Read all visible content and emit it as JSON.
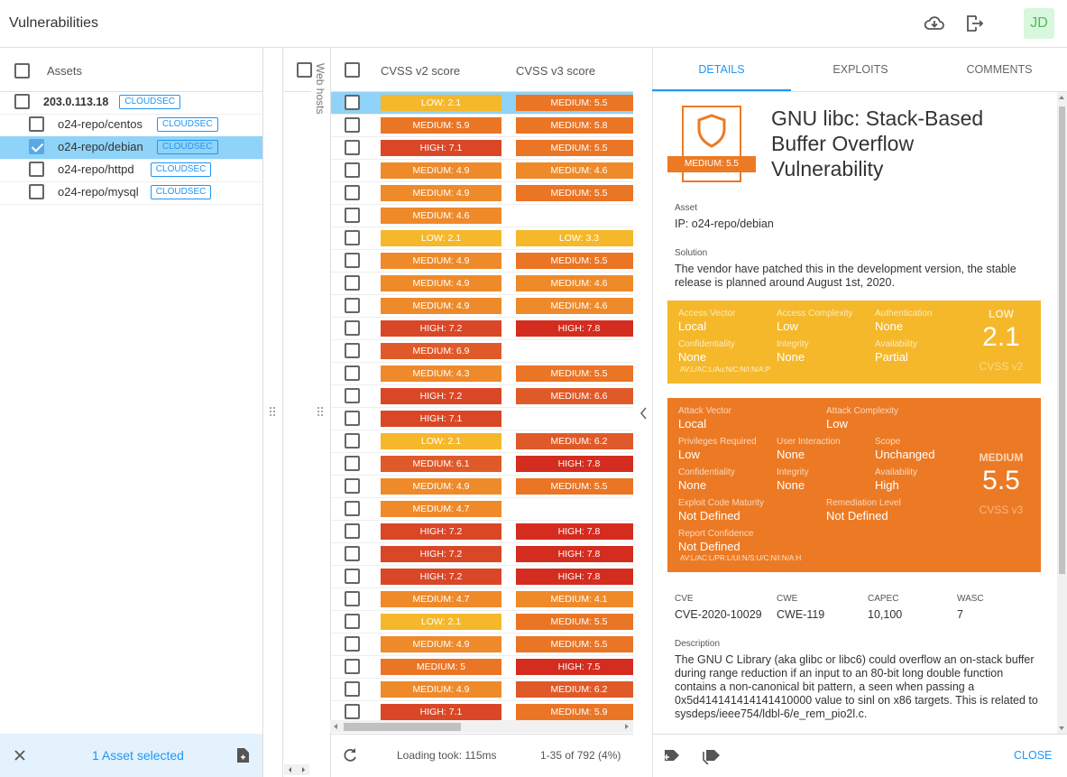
{
  "header": {
    "title": "Vulnerabilities",
    "avatar": "JD"
  },
  "assets": {
    "heading": "Assets",
    "host": {
      "label": "203.0.113.18",
      "tag": "CLOUDSEC"
    },
    "children": [
      {
        "label": "o24-repo/centos",
        "tag": "CLOUDSEC"
      },
      {
        "label": "o24-repo/debian",
        "tag": "CLOUDSEC",
        "selected": true
      },
      {
        "label": "o24-repo/httpd",
        "tag": "CLOUDSEC"
      },
      {
        "label": "o24-repo/mysql",
        "tag": "CLOUDSEC"
      }
    ],
    "footer": "1 Asset selected"
  },
  "table": {
    "side_column": "Web hosts",
    "columns": [
      "CVSS v2 score",
      "CVSS v3 score"
    ],
    "rows": [
      {
        "cvss_v2": "LOW: 2.1",
        "cvss_v3": "MEDIUM: 5.5",
        "selected": true
      },
      {
        "cvss_v2": "MEDIUM: 5.9",
        "cvss_v3": "MEDIUM: 5.8"
      },
      {
        "cvss_v2": "HIGH: 7.1",
        "cvss_v3": "MEDIUM: 5.5"
      },
      {
        "cvss_v2": "MEDIUM: 4.9",
        "cvss_v3": "MEDIUM: 4.6"
      },
      {
        "cvss_v2": "MEDIUM: 4.9",
        "cvss_v3": "MEDIUM: 5.5"
      },
      {
        "cvss_v2": "MEDIUM: 4.6",
        "cvss_v3": null
      },
      {
        "cvss_v2": "LOW: 2.1",
        "cvss_v3": "LOW: 3.3"
      },
      {
        "cvss_v2": "MEDIUM: 4.9",
        "cvss_v3": "MEDIUM: 5.5"
      },
      {
        "cvss_v2": "MEDIUM: 4.9",
        "cvss_v3": "MEDIUM: 4.6"
      },
      {
        "cvss_v2": "MEDIUM: 4.9",
        "cvss_v3": "MEDIUM: 4.6"
      },
      {
        "cvss_v2": "HIGH: 7.2",
        "cvss_v3": "HIGH: 7.8"
      },
      {
        "cvss_v2": "MEDIUM: 6.9",
        "cvss_v3": null
      },
      {
        "cvss_v2": "MEDIUM: 4.3",
        "cvss_v3": "MEDIUM: 5.5"
      },
      {
        "cvss_v2": "HIGH: 7.2",
        "cvss_v3": "MEDIUM: 6.6"
      },
      {
        "cvss_v2": "HIGH: 7.1",
        "cvss_v3": null
      },
      {
        "cvss_v2": "LOW: 2.1",
        "cvss_v3": "MEDIUM: 6.2"
      },
      {
        "cvss_v2": "MEDIUM: 6.1",
        "cvss_v3": "HIGH: 7.8"
      },
      {
        "cvss_v2": "MEDIUM: 4.9",
        "cvss_v3": "MEDIUM: 5.5"
      },
      {
        "cvss_v2": "MEDIUM: 4.7",
        "cvss_v3": null
      },
      {
        "cvss_v2": "HIGH: 7.2",
        "cvss_v3": "HIGH: 7.8"
      },
      {
        "cvss_v2": "HIGH: 7.2",
        "cvss_v3": "HIGH: 7.8"
      },
      {
        "cvss_v2": "HIGH: 7.2",
        "cvss_v3": "HIGH: 7.8"
      },
      {
        "cvss_v2": "MEDIUM: 4.7",
        "cvss_v3": "MEDIUM: 4.1"
      },
      {
        "cvss_v2": "LOW: 2.1",
        "cvss_v3": "MEDIUM: 5.5"
      },
      {
        "cvss_v2": "MEDIUM: 4.9",
        "cvss_v3": "MEDIUM: 5.5"
      },
      {
        "cvss_v2": "MEDIUM: 5",
        "cvss_v3": "HIGH: 7.5"
      },
      {
        "cvss_v2": "MEDIUM: 4.9",
        "cvss_v3": "MEDIUM: 6.2"
      },
      {
        "cvss_v2": "HIGH: 7.1",
        "cvss_v3": "MEDIUM: 5.9"
      }
    ],
    "timing": "Loading took: 115ms",
    "paging": "1-35 of 792 (4%)"
  },
  "details": {
    "tabs": [
      "DETAILS",
      "EXPLOITS",
      "COMMENTS"
    ],
    "badge": "MEDIUM: 5.5",
    "title": "GNU libc: Stack-Based Buffer Overflow Vulnerability",
    "asset": {
      "label": "Asset",
      "value": "IP: o24-repo/debian"
    },
    "solution": {
      "label": "Solution",
      "value": "The vendor have patched this in the development version, the stable release is planned around August 1st, 2020."
    },
    "cvss2": {
      "rows": [
        [
          {
            "label": "Access Vector",
            "value": "Local"
          },
          {
            "label": "Access Complexity",
            "value": "Low"
          },
          {
            "label": "Authentication",
            "value": "None"
          }
        ],
        [
          {
            "label": "Confidentiality",
            "value": "None"
          },
          {
            "label": "Integrity",
            "value": "None"
          },
          {
            "label": "Availability",
            "value": "Partial"
          }
        ]
      ],
      "vector": "AV:L/AC:L/Au:N/C:N/I:N/A:P",
      "severity": "LOW",
      "score": 2.1,
      "version": "CVSS v2"
    },
    "cvss3": {
      "rows": [
        [
          {
            "label": "Attack Vector",
            "value": "Local"
          },
          {
            "label": "Attack Complexity",
            "value": "Low"
          }
        ],
        [
          {
            "label": "Privileges Required",
            "value": "Low"
          },
          {
            "label": "User Interaction",
            "value": "None"
          },
          {
            "label": "Scope",
            "value": "Unchanged"
          }
        ],
        [
          {
            "label": "Confidentiality",
            "value": "None"
          },
          {
            "label": "Integrity",
            "value": "None"
          },
          {
            "label": "Availability",
            "value": "High"
          }
        ],
        [
          {
            "label": "Exploit Code Maturity",
            "value": "Not Defined"
          },
          {
            "label": "Remediation Level",
            "value": "Not Defined"
          }
        ],
        [
          {
            "label": "Report Confidence",
            "value": "Not Defined"
          }
        ]
      ],
      "vector": "AV:L/AC:L/PR:L/UI:N/S:U/C:N/I:N/A:H",
      "severity": "MEDIUM",
      "score": 5.5,
      "version": "CVSS v3"
    },
    "ids": [
      {
        "label": "CVE",
        "value": "CVE-2020-10029"
      },
      {
        "label": "CWE",
        "value": "CWE-119"
      },
      {
        "label": "CAPEC",
        "value": "10,100"
      },
      {
        "label": "WASC",
        "value": 7
      }
    ],
    "description": {
      "label": "Description",
      "value": "The GNU C Library (aka glibc or libc6) could overflow an on-stack buffer during range reduction if an input to an 80-bit long double function contains a non-canonical bit pattern, a seen when passing a 0x5d414141414141410000 value to sinl on x86 targets. This is related to sysdeps/ieee754/ldbl-6/e_rem_pio2l.c."
    },
    "close": "CLOSE"
  }
}
